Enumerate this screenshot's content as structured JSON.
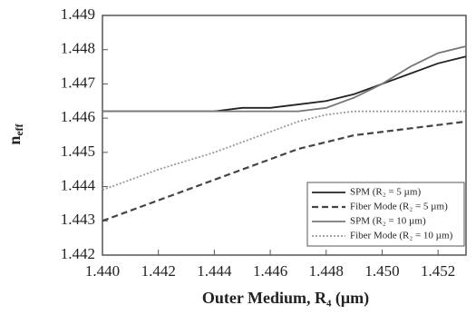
{
  "chart_data": {
    "type": "line",
    "x_label": "Outer Medium, R₄ (μm)",
    "y_label": {
      "main": "n",
      "sub": "eff"
    },
    "x": [
      1.44,
      1.442,
      1.444,
      1.445,
      1.446,
      1.447,
      1.448,
      1.449,
      1.45,
      1.451,
      1.452,
      1.453
    ],
    "series": [
      {
        "name": "SPM (R₂ = 5 µm)",
        "color": "#222222",
        "dash": "solid",
        "values": [
          1.4462,
          1.4462,
          1.4462,
          1.4463,
          1.4463,
          1.4464,
          1.4465,
          1.4467,
          1.447,
          1.4473,
          1.4476,
          1.4478
        ]
      },
      {
        "name": "Fiber Mode (R₂ = 5 µm)",
        "color": "#444444",
        "dash": "dashed",
        "values": [
          1.443,
          1.4436,
          1.4442,
          1.4445,
          1.4448,
          1.4451,
          1.4453,
          1.4455,
          1.4456,
          1.4457,
          1.4458,
          1.4459
        ]
      },
      {
        "name": "SPM (R₂ = 10 µm)",
        "color": "#777777",
        "dash": "solid",
        "values": [
          1.4462,
          1.4462,
          1.4462,
          1.4462,
          1.4462,
          1.4462,
          1.4463,
          1.4466,
          1.447,
          1.4475,
          1.4479,
          1.4481
        ]
      },
      {
        "name": "Fiber Mode (R₂ = 10 µm)",
        "color": "#999999",
        "dash": "dotted",
        "values": [
          1.4439,
          1.4445,
          1.445,
          1.4453,
          1.4456,
          1.4459,
          1.4461,
          1.4462,
          1.4462,
          1.4462,
          1.4462,
          1.4462
        ]
      }
    ],
    "xlim": [
      1.44,
      1.453
    ],
    "xticks": [
      {
        "value": 1.44,
        "label": "1.440"
      },
      1.442,
      1.444,
      1.446,
      1.448,
      {
        "value": 1.45,
        "label": "1.450"
      },
      1.452
    ],
    "ylim": [
      1.442,
      1.449
    ],
    "yticks": [
      1.442,
      1.443,
      1.444,
      1.445,
      1.446,
      1.447,
      1.448,
      1.449
    ],
    "legend": "lower right",
    "grid": false
  }
}
